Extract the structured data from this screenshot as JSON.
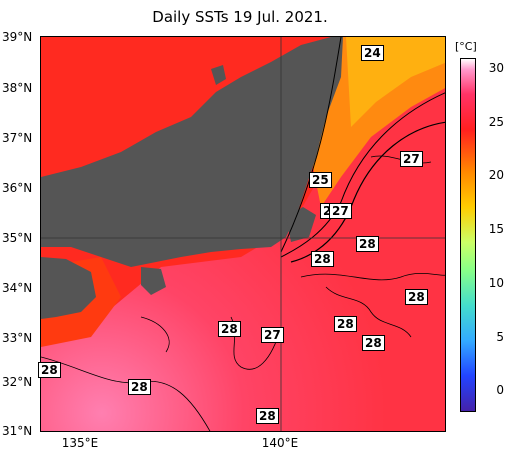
{
  "title": "Daily SSTs 19 Jul. 2021.",
  "colorbar": {
    "unit": "[°C]",
    "ticks": [
      "30",
      "25",
      "20",
      "15",
      "10",
      "5",
      "0"
    ]
  },
  "lat_labels": [
    "39°N",
    "38°N",
    "37°N",
    "36°N",
    "35°N",
    "34°N",
    "33°N",
    "32°N",
    "31°N"
  ],
  "lon_labels": [
    "135°E",
    "140°E"
  ],
  "temp_labels": [
    "24",
    "27",
    "25",
    "2",
    "27",
    "28",
    "28",
    "28",
    "28",
    "27",
    "28",
    "28",
    "28",
    "28",
    "28"
  ],
  "chart_data": {
    "type": "heatmap",
    "title": "Daily SSTs 19 Jul. 2021.",
    "lat_range": [
      31,
      39
    ],
    "lon_range": [
      134,
      142
    ],
    "colorbar_range": [
      -2,
      31
    ],
    "colorbar_unit": "°C",
    "contour_labels": [
      24,
      25,
      27,
      28
    ]
  }
}
